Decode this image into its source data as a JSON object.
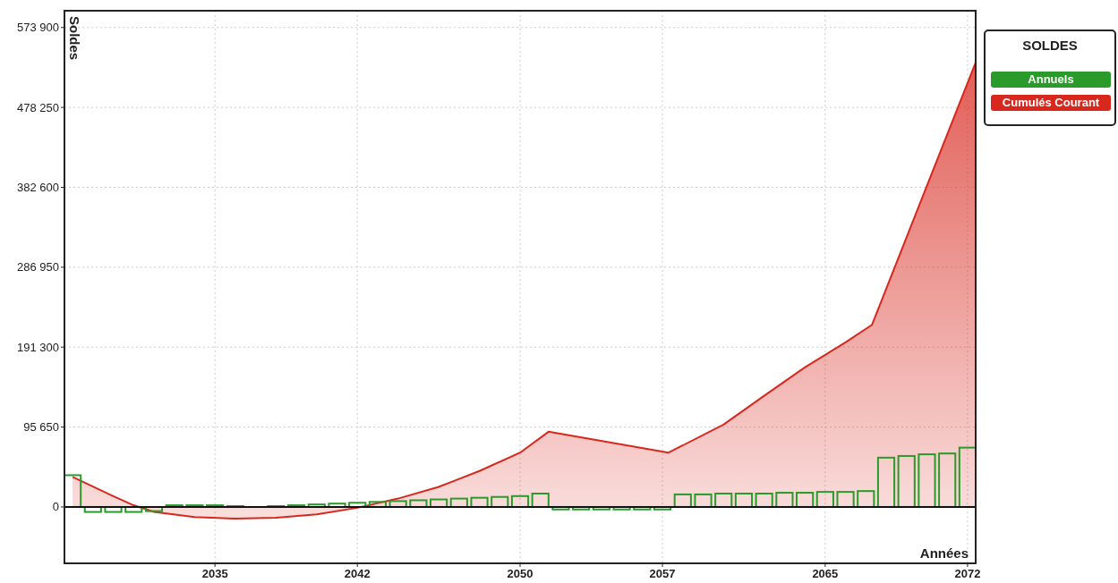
{
  "chart_data": {
    "type": "bar",
    "xlabel": "Années",
    "ylabel": "Soldes",
    "legend_title": "SOLDES",
    "legend": "top right",
    "grid": true,
    "x": [
      2028,
      2029,
      2030,
      2031,
      2032,
      2033,
      2034,
      2035,
      2036,
      2037,
      2038,
      2039,
      2040,
      2041,
      2042,
      2043,
      2044,
      2045,
      2046,
      2047,
      2048,
      2049,
      2050,
      2051,
      2052,
      2053,
      2054,
      2055,
      2056,
      2057,
      2058,
      2059,
      2060,
      2061,
      2062,
      2063,
      2064,
      2065,
      2066,
      2067,
      2068,
      2069,
      2070,
      2071,
      2072
    ],
    "xlim": [
      2027.6,
      2072.4
    ],
    "xticks": [
      2035,
      2042,
      2050,
      2057,
      2065,
      2072
    ],
    "ylim": [
      -67500,
      594000
    ],
    "yticks": [
      0,
      {
        "value": 95650,
        "label": "95 650"
      },
      {
        "value": 191300,
        "label": "191 300"
      },
      {
        "value": 286950,
        "label": "286 950"
      },
      {
        "value": 382600,
        "label": "382 600"
      },
      {
        "value": 478250,
        "label": "478 250"
      },
      {
        "value": 573900,
        "label": "573 900"
      }
    ],
    "series": [
      {
        "name": "Annuels",
        "color": "#2a9a2a",
        "values": [
          38000,
          -6000,
          -6000,
          -6000,
          -5000,
          2000,
          2000,
          2000,
          1000,
          0,
          1000,
          2000,
          3000,
          4000,
          5000,
          6000,
          7000,
          8000,
          9000,
          10000,
          11000,
          12000,
          13000,
          16000,
          -3000,
          -3000,
          -3000,
          -3000,
          -3000,
          -3000,
          15000,
          15000,
          16000,
          16000,
          16000,
          17000,
          17000,
          18000,
          18000,
          19000,
          59000,
          61000,
          63000,
          64000,
          71000
        ]
      },
      {
        "name": "Cumulés Courant",
        "type": "area",
        "color": "#d8281e",
        "x": [
          2028,
          2030,
          2031,
          2032,
          2034,
          2036,
          2038,
          2040,
          2042,
          2044,
          2046,
          2048,
          2050,
          2051.4,
          2057.3,
          2060,
          2062,
          2064,
          2066,
          2067.3,
          2072.4
        ],
        "values": [
          36000,
          13000,
          2000,
          -6000,
          -12000,
          -14000,
          -13000,
          -9000,
          -1000,
          10000,
          24000,
          43000,
          65000,
          90000,
          65000,
          98500,
          133000,
          167000,
          197000,
          218000,
          532000
        ]
      }
    ]
  }
}
